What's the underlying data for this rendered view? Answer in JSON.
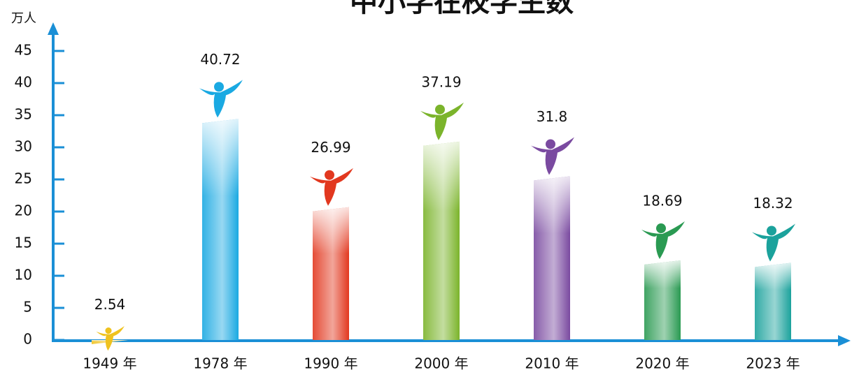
{
  "chart_data": {
    "type": "bar",
    "title": "中小学在校学生数",
    "y_label": "万人",
    "categories": [
      "1949 年",
      "1978 年",
      "1990 年",
      "2000 年",
      "2010 年",
      "2020 年",
      "2023 年"
    ],
    "values": [
      2.54,
      40.72,
      26.99,
      37.19,
      31.8,
      18.69,
      18.32
    ],
    "colors": [
      "#efc21e",
      "#1aa9e2",
      "#e2381f",
      "#7bb42b",
      "#7a4aa0",
      "#2a9a52",
      "#1ba29c"
    ],
    "ylim": [
      0,
      45
    ],
    "yticks": [
      0,
      5,
      10,
      15,
      20,
      25,
      30,
      35,
      40,
      45
    ],
    "grid": false
  }
}
